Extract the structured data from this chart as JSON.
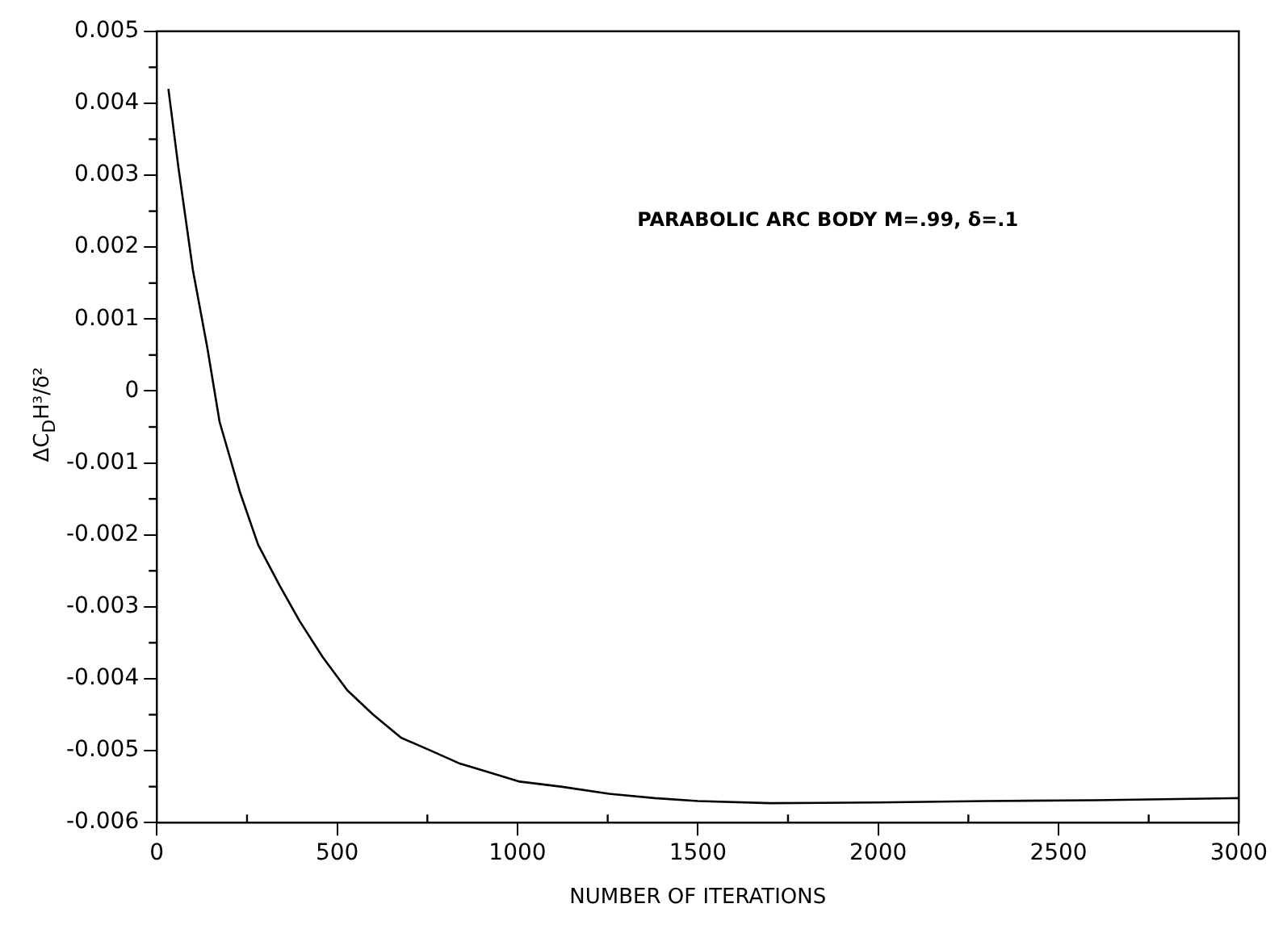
{
  "chart_data": {
    "type": "line",
    "xlabel": "NUMBER OF ITERATIONS",
    "ylabel": "ΔC$_{D}$H³/δ²",
    "annotations": [
      "PARABOLIC ARC BODY M=.99, δ=.1"
    ],
    "series": [
      {
        "color": "#000000",
        "x": [
          32,
          60,
          100,
          140,
          174,
          230,
          281,
          340,
          396,
          460,
          528,
          600,
          677,
          760,
          840,
          920,
          1006,
          1120,
          1254,
          1380,
          1500,
          1700,
          2000,
          2300,
          2600,
          3000
        ],
        "values": [
          0.0042,
          0.0031,
          0.00168,
          0.0006,
          -0.00043,
          -0.0014,
          -0.00214,
          -0.0027,
          -0.0032,
          -0.0037,
          -0.00416,
          -0.0045,
          -0.00482,
          -0.005,
          -0.00518,
          -0.0053,
          -0.00543,
          -0.0055,
          -0.0056,
          -0.00566,
          -0.0057,
          -0.00573,
          -0.00572,
          -0.0057,
          -0.00569,
          -0.00566
        ]
      }
    ],
    "xlim": [
      0,
      3000
    ],
    "xticks": [
      0,
      500,
      1000,
      1500,
      2000,
      2500,
      3000
    ],
    "ylim": [
      -0.006,
      0.005
    ],
    "yticks": [
      -0.006,
      -0.005,
      -0.004,
      -0.003,
      -0.002,
      -0.001,
      0,
      0.001,
      0.002,
      0.003,
      0.004,
      0.005
    ],
    "grid": false,
    "legend": false,
    "marker": "none",
    "line_style": "solid"
  }
}
